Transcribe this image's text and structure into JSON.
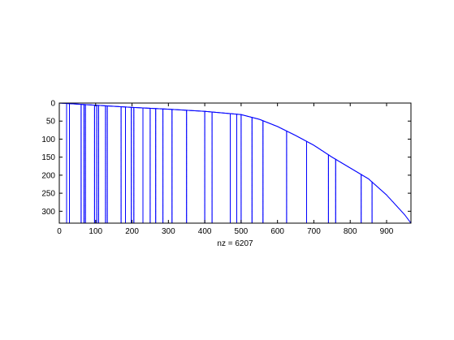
{
  "chart_data": {
    "type": "scatter",
    "subtype": "sparsity-pattern",
    "title": "",
    "xlabel": "nz = 6207",
    "ylabel": "",
    "nz": 6207,
    "xlim": [
      0,
      967
    ],
    "ylim": [
      0,
      333
    ],
    "y_axis_reversed": true,
    "x_ticks": [
      0,
      100,
      200,
      300,
      400,
      500,
      600,
      700,
      800,
      900
    ],
    "x_tick_labels": [
      "0",
      "100",
      "200",
      "300",
      "400",
      "500",
      "600",
      "700",
      "800",
      "900"
    ],
    "y_ticks": [
      0,
      50,
      100,
      150,
      200,
      250,
      300
    ],
    "y_tick_labels": [
      "0",
      "50",
      "100",
      "150",
      "200",
      "250",
      "300"
    ],
    "grid": false,
    "marker_color": "#0000ff",
    "axis_color": "#000000",
    "boundary_curve": {
      "description": "approximate upper envelope of nonzeros (row index of first nonzero per column)",
      "x": [
        0,
        100,
        200,
        300,
        400,
        500,
        550,
        600,
        650,
        700,
        750,
        800,
        850,
        900,
        950,
        967
      ],
      "y": [
        0,
        6,
        12,
        17,
        23,
        32,
        45,
        65,
        90,
        117,
        150,
        180,
        210,
        255,
        310,
        333
      ]
    },
    "dense_columns": [
      20,
      28,
      60,
      68,
      72,
      97,
      103,
      108,
      127,
      132,
      170,
      182,
      198,
      205,
      230,
      250,
      265,
      285,
      310,
      350,
      400,
      420,
      470,
      488,
      500,
      530,
      560,
      625,
      680,
      740,
      760,
      830,
      860
    ]
  }
}
